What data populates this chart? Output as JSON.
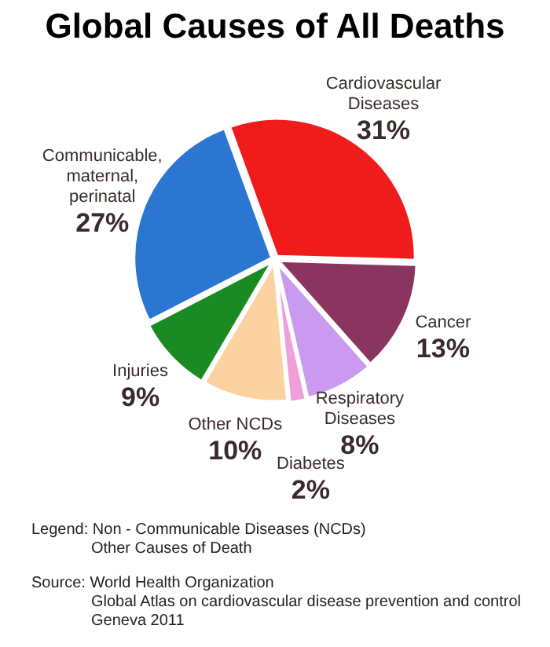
{
  "chart_data": {
    "type": "pie",
    "title": "Global Causes of All Deaths",
    "categories": [
      "Cardiovascular Diseases",
      "Cancer",
      "Respiratory Diseases",
      "Diabetes",
      "Other NCDs",
      "Injuries",
      "Communicable, maternal, perinatal"
    ],
    "values": [
      31,
      13,
      8,
      2,
      10,
      9,
      27
    ],
    "colors": [
      "#f01c1c",
      "#8a3560",
      "#c99af0",
      "#f0a0d8",
      "#fcd2a0",
      "#1a8a22",
      "#2a76d0"
    ],
    "value_labels": [
      "31%",
      "13%",
      "8%",
      "2%",
      "10%",
      "9%",
      "27%"
    ],
    "legend": false,
    "annotations": [
      "Legend:  Non - Communicable Diseases (NCDs)",
      "Other Causes of Death",
      "Source:  World Health Organization",
      "Global Atlas on cardiovascular disease prevention and control",
      "Geneva 2011"
    ]
  }
}
